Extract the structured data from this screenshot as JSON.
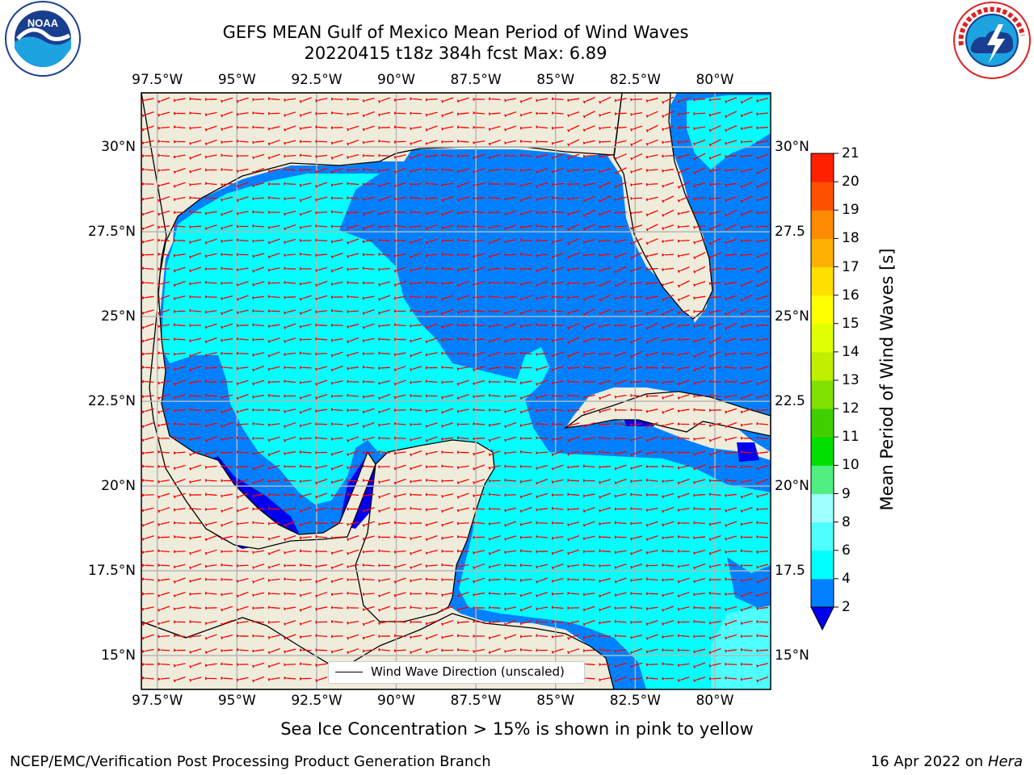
{
  "header": {
    "title_line1": "GEFS MEAN Gulf of Mexico Mean Period of Wind Waves",
    "title_line2": "20220415 t18z 384h fcst   Max: 6.89"
  },
  "logos": {
    "noaa_text": "NOAA",
    "noaa_ring_text": "NATIONAL OCEANIC AND ATMOSPHERIC ADMINISTRATION · U.S. DEPARTMENT OF COMMERCE",
    "nws_ring_text": "NATIONAL WEATHER SERVICE"
  },
  "map": {
    "lon_ticks": [
      "97.5°W",
      "95°W",
      "92.5°W",
      "90°W",
      "87.5°W",
      "85°W",
      "82.5°W",
      "80°W"
    ],
    "lon_values": [
      -97.5,
      -95,
      -92.5,
      -90,
      -87.5,
      -85,
      -82.5,
      -80
    ],
    "lat_ticks_left": [
      "15°N",
      "17.5°N",
      "20°N",
      "22.5°N",
      "25°N",
      "27.5°N",
      "30°N"
    ],
    "lat_ticks_right": [
      "15°N",
      "17.5",
      "20°N",
      "22.5",
      "25°N",
      "27.5",
      "30°N"
    ],
    "lat_values": [
      15,
      17.5,
      20,
      22.5,
      25,
      27.5,
      30
    ],
    "extent": {
      "lon_min": -98,
      "lon_max": -78.25,
      "lat_min": 14,
      "lat_max": 31.6
    },
    "legend_label": "Wind Wave Direction (unscaled)",
    "colors": {
      "land": "#efecdb",
      "coast": "#000000",
      "grid": "#b5b5b5",
      "vector": "#ff0000",
      "below_min": "#0000ee"
    }
  },
  "colorbar": {
    "label": "Mean Period of Wind Waves [s]",
    "ticks": [
      "2",
      "4",
      "6",
      "8",
      "9",
      "10",
      "11",
      "12",
      "13",
      "14",
      "15",
      "16",
      "17",
      "18",
      "19",
      "20",
      "21"
    ],
    "colors": [
      "#0080ff",
      "#00ffff",
      "#4dffff",
      "#a0ffff",
      "#50f080",
      "#00e000",
      "#40d000",
      "#80e000",
      "#c0f000",
      "#e0ff00",
      "#ffff00",
      "#ffe000",
      "#ffb000",
      "#ff8c00",
      "#ff5000",
      "#ff2000"
    ]
  },
  "footer": {
    "sea_ice_note": "Sea Ice Concentration > 15% is shown in pink to yellow",
    "branch": "NCEP/EMC/Verification Post Processing Product Generation Branch",
    "date": "16 Apr 2022 on ",
    "host": "Hera"
  }
}
